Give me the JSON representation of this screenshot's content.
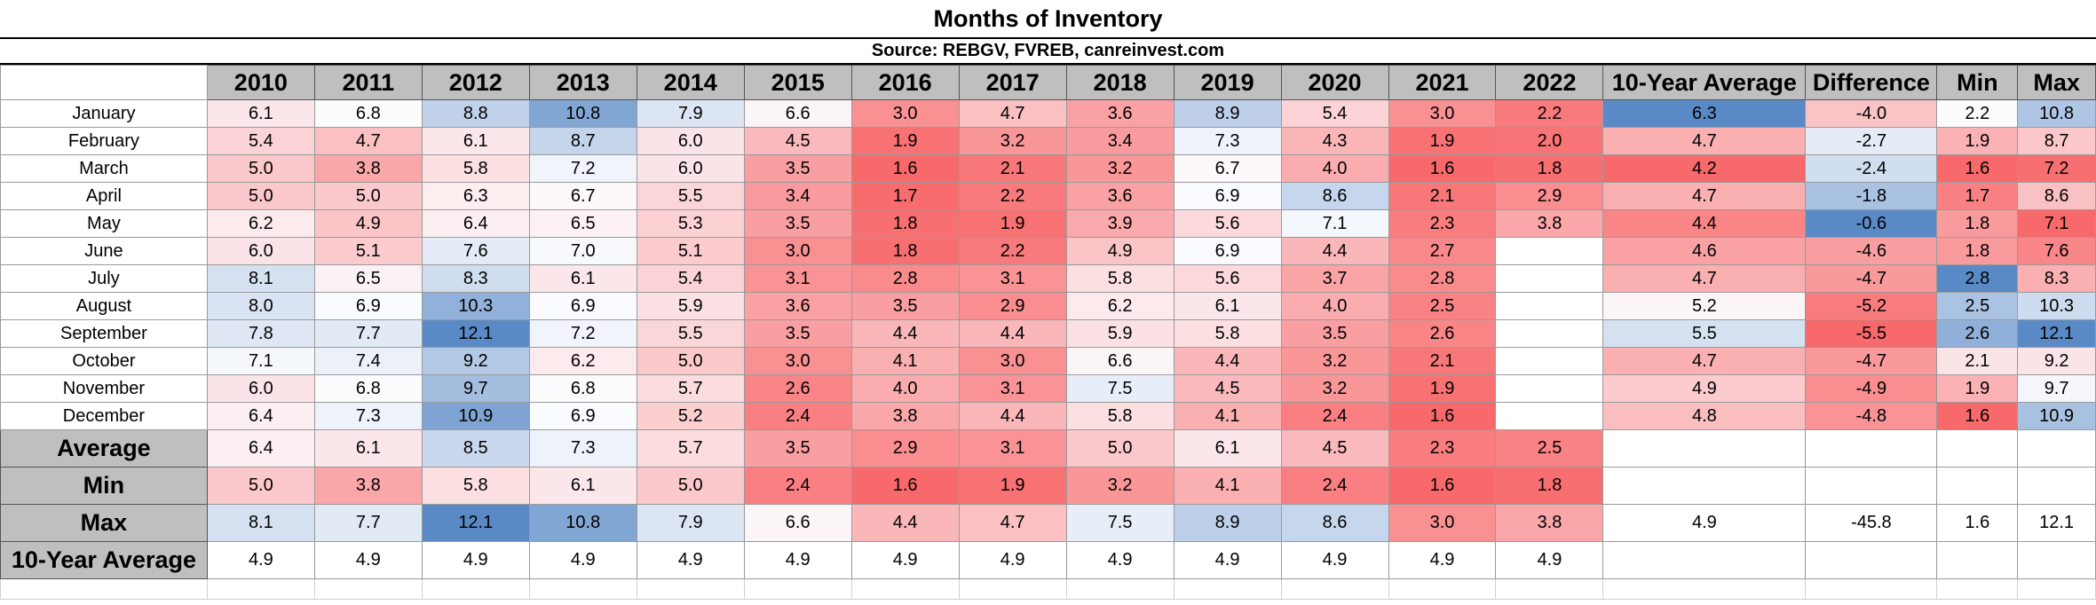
{
  "title": "Months of Inventory",
  "source": "Source: REBGV, FVREB, canreinvest.com",
  "years": [
    "2010",
    "2011",
    "2012",
    "2013",
    "2014",
    "2015",
    "2016",
    "2017",
    "2018",
    "2019",
    "2020",
    "2021",
    "2022"
  ],
  "extra_headers": [
    "10-Year Average",
    "Difference",
    "Min",
    "Max"
  ],
  "months": [
    "January",
    "February",
    "March",
    "April",
    "May",
    "June",
    "July",
    "August",
    "September",
    "October",
    "November",
    "December"
  ],
  "monthly_values": [
    [
      "6.1",
      "6.8",
      "8.8",
      "10.8",
      "7.9",
      "6.6",
      "3.0",
      "4.7",
      "3.6",
      "8.9",
      "5.4",
      "3.0",
      "2.2"
    ],
    [
      "5.4",
      "4.7",
      "6.1",
      "8.7",
      "6.0",
      "4.5",
      "1.9",
      "3.2",
      "3.4",
      "7.3",
      "4.3",
      "1.9",
      "2.0"
    ],
    [
      "5.0",
      "3.8",
      "5.8",
      "7.2",
      "6.0",
      "3.5",
      "1.6",
      "2.1",
      "3.2",
      "6.7",
      "4.0",
      "1.6",
      "1.8"
    ],
    [
      "5.0",
      "5.0",
      "6.3",
      "6.7",
      "5.5",
      "3.4",
      "1.7",
      "2.2",
      "3.6",
      "6.9",
      "8.6",
      "2.1",
      "2.9"
    ],
    [
      "6.2",
      "4.9",
      "6.4",
      "6.5",
      "5.3",
      "3.5",
      "1.8",
      "1.9",
      "3.9",
      "5.6",
      "7.1",
      "2.3",
      "3.8"
    ],
    [
      "6.0",
      "5.1",
      "7.6",
      "7.0",
      "5.1",
      "3.0",
      "1.8",
      "2.2",
      "4.9",
      "6.9",
      "4.4",
      "2.7",
      ""
    ],
    [
      "8.1",
      "6.5",
      "8.3",
      "6.1",
      "5.4",
      "3.1",
      "2.8",
      "3.1",
      "5.8",
      "5.6",
      "3.7",
      "2.8",
      ""
    ],
    [
      "8.0",
      "6.9",
      "10.3",
      "6.9",
      "5.9",
      "3.6",
      "3.5",
      "2.9",
      "6.2",
      "6.1",
      "4.0",
      "2.5",
      ""
    ],
    [
      "7.8",
      "7.7",
      "12.1",
      "7.2",
      "5.5",
      "3.5",
      "4.4",
      "4.4",
      "5.9",
      "5.8",
      "3.5",
      "2.6",
      ""
    ],
    [
      "7.1",
      "7.4",
      "9.2",
      "6.2",
      "5.0",
      "3.0",
      "4.1",
      "3.0",
      "6.6",
      "4.4",
      "3.2",
      "2.1",
      ""
    ],
    [
      "6.0",
      "6.8",
      "9.7",
      "6.8",
      "5.7",
      "2.6",
      "4.0",
      "3.1",
      "7.5",
      "4.5",
      "3.2",
      "1.9",
      ""
    ],
    [
      "6.4",
      "7.3",
      "10.9",
      "6.9",
      "5.2",
      "2.4",
      "3.8",
      "4.4",
      "5.8",
      "4.1",
      "2.4",
      "1.6",
      ""
    ]
  ],
  "monthly_stats": [
    [
      "6.3",
      "-4.0",
      "2.2",
      "10.8"
    ],
    [
      "4.7",
      "-2.7",
      "1.9",
      "8.7"
    ],
    [
      "4.2",
      "-2.4",
      "1.6",
      "7.2"
    ],
    [
      "4.7",
      "-1.8",
      "1.7",
      "8.6"
    ],
    [
      "4.4",
      "-0.6",
      "1.8",
      "7.1"
    ],
    [
      "4.6",
      "-4.6",
      "1.8",
      "7.6"
    ],
    [
      "4.7",
      "-4.7",
      "2.8",
      "8.3"
    ],
    [
      "5.2",
      "-5.2",
      "2.5",
      "10.3"
    ],
    [
      "5.5",
      "-5.5",
      "2.6",
      "12.1"
    ],
    [
      "4.7",
      "-4.7",
      "2.1",
      "9.2"
    ],
    [
      "4.9",
      "-4.9",
      "1.9",
      "9.7"
    ],
    [
      "4.8",
      "-4.8",
      "1.6",
      "10.9"
    ]
  ],
  "summary": [
    {
      "label": "Average",
      "values": [
        "6.4",
        "6.1",
        "8.5",
        "7.3",
        "5.7",
        "3.5",
        "2.9",
        "3.1",
        "5.0",
        "6.1",
        "4.5",
        "2.3",
        "2.5"
      ],
      "extra": [
        "",
        "",
        "",
        ""
      ]
    },
    {
      "label": "Min",
      "values": [
        "5.0",
        "3.8",
        "5.8",
        "6.1",
        "5.0",
        "2.4",
        "1.6",
        "1.9",
        "3.2",
        "4.1",
        "2.4",
        "1.6",
        "1.8"
      ],
      "extra": [
        "",
        "",
        "",
        ""
      ]
    },
    {
      "label": "Max",
      "values": [
        "8.1",
        "7.7",
        "12.1",
        "10.8",
        "7.9",
        "6.6",
        "4.4",
        "4.7",
        "7.5",
        "8.9",
        "8.6",
        "3.0",
        "3.8"
      ],
      "extra": [
        "4.9",
        "-45.8",
        "1.6",
        "12.1"
      ]
    },
    {
      "label": "10-Year Average",
      "values": [
        "4.9",
        "4.9",
        "4.9",
        "4.9",
        "4.9",
        "4.9",
        "4.9",
        "4.9",
        "4.9",
        "4.9",
        "4.9",
        "4.9",
        "4.9"
      ],
      "extra": [
        "",
        "",
        "",
        ""
      ]
    }
  ],
  "colors": {
    "low": "#f8696b",
    "mid": "#fcfcff",
    "high": "#5a8ac6",
    "header_gray": "#bfbfbf"
  },
  "chart_data": {
    "type": "table",
    "title": "Months of Inventory",
    "subtitle": "Source: REBGV, FVREB, canreinvest.com",
    "columns": [
      "2010",
      "2011",
      "2012",
      "2013",
      "2014",
      "2015",
      "2016",
      "2017",
      "2018",
      "2019",
      "2020",
      "2021",
      "2022",
      "10-Year Average",
      "Difference",
      "Min",
      "Max"
    ],
    "color_scale": "red (low) to white to blue (high)"
  }
}
